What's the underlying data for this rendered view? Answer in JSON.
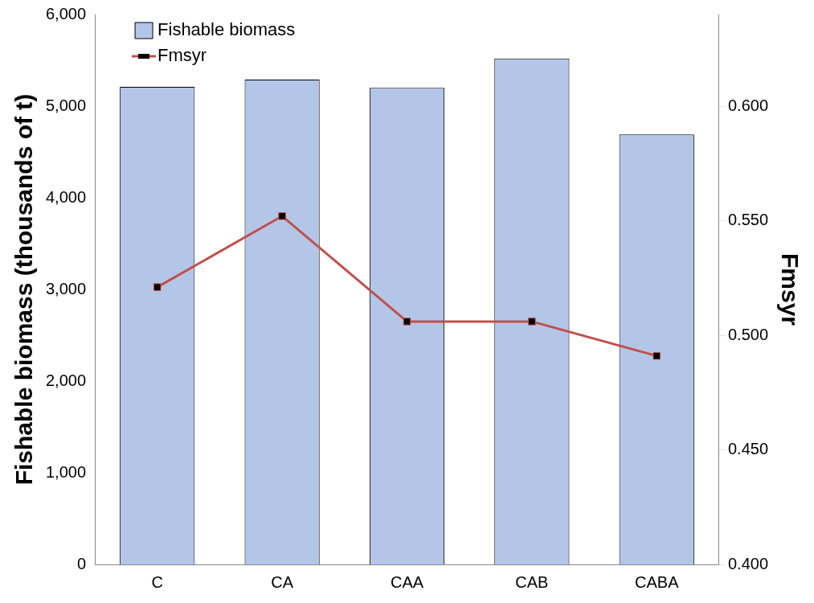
{
  "chart_data": {
    "type": "bar",
    "categories": [
      "C",
      "CA",
      "CAA",
      "CAB",
      "CABA"
    ],
    "series": [
      {
        "name": "Fishable biomass",
        "color": "#b4c6e7",
        "values": [
          5210,
          5290,
          5200,
          5520,
          4690
        ]
      },
      {
        "name": "Fmsyr",
        "type": "line",
        "axis": "y2",
        "color": "#c0504d",
        "values": [
          0.521,
          0.552,
          0.506,
          0.506,
          0.491
        ]
      }
    ],
    "ylabel": "Fishable biomass (thousands of t)",
    "y2label": "Fmsyr",
    "ylim": [
      0,
      6000
    ],
    "yticks": [
      {
        "value": 0,
        "label": "0"
      },
      {
        "value": 1000,
        "label": "1,000"
      },
      {
        "value": 2000,
        "label": "2,000"
      },
      {
        "value": 3000,
        "label": "3,000"
      },
      {
        "value": 4000,
        "label": "4,000"
      },
      {
        "value": 5000,
        "label": "5,000"
      },
      {
        "value": 6000,
        "label": "6,000"
      }
    ],
    "y2lim": [
      0.4,
      0.64
    ],
    "y2ticks": [
      {
        "value": 0.4,
        "label": "0.400"
      },
      {
        "value": 0.45,
        "label": "0.450"
      },
      {
        "value": 0.5,
        "label": "0.500"
      },
      {
        "value": 0.55,
        "label": "0.550"
      },
      {
        "value": 0.6,
        "label": "0.600"
      }
    ],
    "grid": false,
    "legend": "top left",
    "marker": "square",
    "line_style": "solid"
  }
}
